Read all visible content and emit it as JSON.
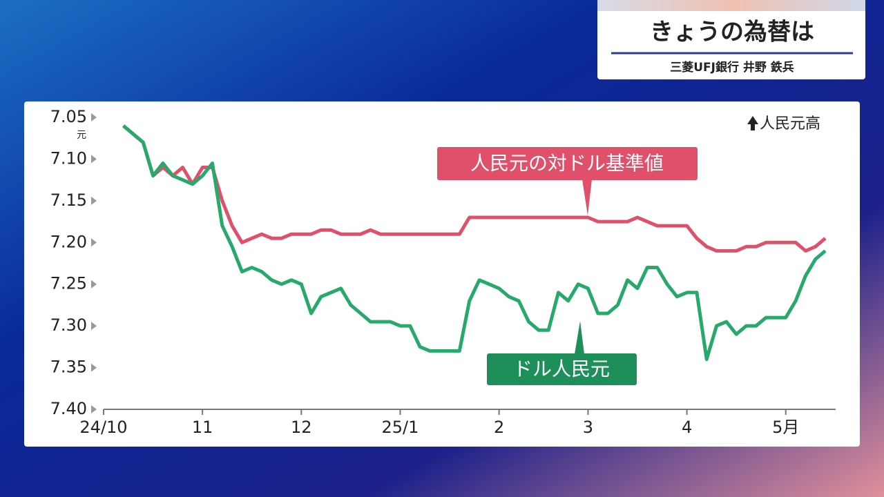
{
  "header": {
    "title": "きょうの為替は",
    "subtitle": "三菱UFJ銀行 井野 鉄兵"
  },
  "chart_data": {
    "type": "line",
    "annotation": "人民元高",
    "y_unit": "元",
    "categories": [
      "24/10",
      null,
      null,
      null,
      null,
      null,
      null,
      null,
      null,
      null,
      "11",
      null,
      null,
      null,
      null,
      null,
      null,
      null,
      null,
      null,
      "12",
      null,
      null,
      null,
      null,
      null,
      null,
      null,
      null,
      null,
      "25/1",
      null,
      null,
      null,
      null,
      null,
      null,
      null,
      null,
      null,
      "2",
      null,
      null,
      null,
      null,
      null,
      null,
      null,
      null,
      "3",
      null,
      null,
      null,
      null,
      null,
      null,
      null,
      null,
      null,
      "4",
      null,
      null,
      null,
      null,
      null,
      null,
      null,
      null,
      null,
      "5月",
      null,
      null,
      null,
      null
    ],
    "series": [
      {
        "name": "人民元の対ドル基準値",
        "color": "#e0506b",
        "values": [
          null,
          null,
          7.06,
          7.07,
          7.08,
          7.12,
          7.11,
          7.12,
          7.11,
          7.13,
          7.11,
          7.11,
          7.15,
          7.18,
          7.2,
          7.195,
          7.19,
          7.195,
          7.195,
          7.19,
          7.19,
          7.19,
          7.185,
          7.185,
          7.19,
          7.19,
          7.19,
          7.185,
          7.19,
          7.19,
          7.19,
          7.19,
          7.19,
          7.19,
          7.19,
          7.19,
          7.19,
          7.17,
          7.17,
          7.17,
          7.17,
          7.17,
          7.17,
          7.17,
          7.17,
          7.17,
          7.17,
          7.17,
          7.17,
          7.17,
          7.175,
          7.175,
          7.175,
          7.175,
          7.17,
          7.175,
          7.18,
          7.18,
          7.18,
          7.18,
          7.195,
          7.205,
          7.21,
          7.21,
          7.21,
          7.205,
          7.205,
          7.2,
          7.2,
          7.2,
          7.2,
          7.21,
          7.205,
          7.195
        ]
      },
      {
        "name": "ドル人民元",
        "color": "#27a96b",
        "values": [
          null,
          null,
          7.06,
          7.07,
          7.08,
          7.12,
          7.105,
          7.12,
          7.125,
          7.13,
          7.12,
          7.105,
          7.18,
          7.205,
          7.235,
          7.23,
          7.235,
          7.245,
          7.25,
          7.245,
          7.25,
          7.285,
          7.265,
          7.26,
          7.255,
          7.275,
          7.285,
          7.295,
          7.295,
          7.295,
          7.3,
          7.3,
          7.325,
          7.33,
          7.33,
          7.33,
          7.33,
          7.27,
          7.245,
          7.25,
          7.255,
          7.265,
          7.27,
          7.295,
          7.305,
          7.305,
          7.26,
          7.27,
          7.25,
          7.255,
          7.285,
          7.285,
          7.275,
          7.245,
          7.255,
          7.23,
          7.23,
          7.25,
          7.265,
          7.26,
          7.26,
          7.34,
          7.3,
          7.295,
          7.31,
          7.3,
          7.3,
          7.29,
          7.29,
          7.29,
          7.27,
          7.24,
          7.22,
          7.21
        ]
      }
    ],
    "ylim": [
      7.4,
      7.05
    ],
    "yticks": [
      7.05,
      {
        "value": 7.1,
        "label": "7.10"
      },
      7.15,
      {
        "value": 7.2,
        "label": "7.20"
      },
      7.25,
      {
        "value": 7.3,
        "label": "7.30"
      },
      7.35,
      {
        "value": 7.4,
        "label": "7.40"
      }
    ],
    "grid": false
  }
}
